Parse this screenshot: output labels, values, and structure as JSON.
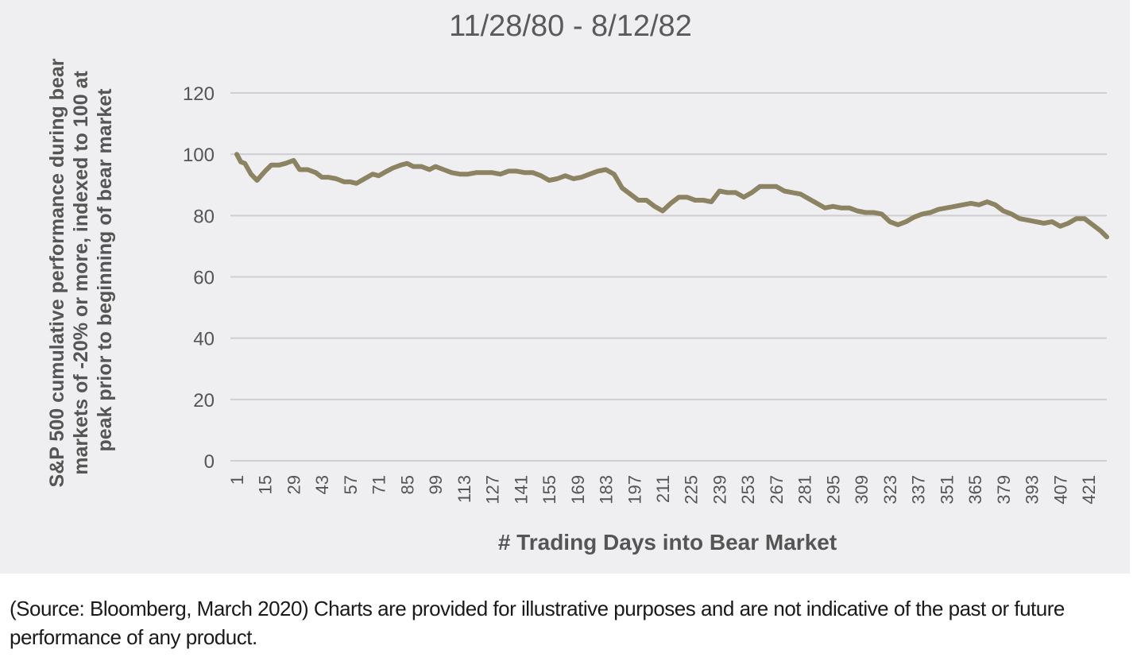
{
  "chart_data": {
    "type": "line",
    "title": "11/28/80 - 8/12/82",
    "ylabel_lines": [
      "S&P 500 cumulative performance during bear",
      "markets of -20% or more, indexed to 100 at",
      "peak prior to beginning of bear market"
    ],
    "xlabel": "# Trading Days into Bear Market",
    "ylim": [
      0,
      120
    ],
    "yticks": [
      0,
      20,
      40,
      60,
      80,
      100,
      120
    ],
    "xlim": [
      1,
      430
    ],
    "xticks": [
      1,
      15,
      29,
      43,
      57,
      71,
      85,
      99,
      113,
      127,
      141,
      155,
      169,
      183,
      197,
      211,
      225,
      239,
      253,
      267,
      281,
      295,
      309,
      323,
      337,
      351,
      365,
      379,
      393,
      407,
      421
    ],
    "grid": true,
    "series": [
      {
        "color": "#8c8363",
        "x": [
          1,
          3,
          5,
          8,
          11,
          15,
          18,
          22,
          25,
          29,
          32,
          36,
          40,
          43,
          46,
          50,
          54,
          57,
          60,
          64,
          68,
          71,
          75,
          78,
          82,
          85,
          88,
          92,
          96,
          99,
          103,
          107,
          111,
          115,
          119,
          123,
          127,
          131,
          135,
          139,
          143,
          147,
          151,
          155,
          159,
          163,
          167,
          171,
          175,
          179,
          183,
          187,
          191,
          195,
          199,
          203,
          207,
          211,
          215,
          219,
          223,
          227,
          231,
          235,
          239,
          243,
          247,
          251,
          255,
          259,
          263,
          267,
          271,
          275,
          279,
          283,
          287,
          291,
          295,
          299,
          303,
          307,
          311,
          315,
          319,
          323,
          327,
          331,
          335,
          339,
          343,
          347,
          351,
          355,
          359,
          363,
          367,
          371,
          375,
          379,
          383,
          387,
          391,
          395,
          399,
          403,
          407,
          411,
          415,
          419,
          423,
          427,
          430
        ],
        "values": [
          100,
          97.5,
          97,
          93.5,
          91.5,
          94.5,
          96.5,
          96.5,
          97,
          98,
          95,
          95,
          94,
          92.5,
          92.5,
          92,
          91,
          91,
          90.5,
          92,
          93.5,
          93,
          94.5,
          95.5,
          96.5,
          97,
          96,
          96,
          95,
          96,
          95,
          94,
          93.5,
          93.5,
          94,
          94,
          94,
          93.5,
          94.5,
          94.5,
          94,
          94,
          93,
          91.5,
          92,
          93,
          92,
          92.5,
          93.5,
          94.5,
          95,
          93.5,
          89,
          87,
          85,
          85,
          83,
          81.5,
          84,
          86,
          86,
          85,
          85,
          84.5,
          88,
          87.5,
          87.5,
          86,
          87.5,
          89.5,
          89.5,
          89.5,
          88,
          87.5,
          87,
          85.5,
          84,
          82.5,
          83,
          82.5,
          82.5,
          81.5,
          81,
          81,
          80.5,
          78,
          77,
          78,
          79.5,
          80.5,
          81,
          82,
          82.5,
          83,
          83.5,
          84,
          83.5,
          84.5,
          83.5,
          81.5,
          80.5,
          79,
          78.5,
          78,
          77.5,
          78,
          76.5,
          77.5,
          79,
          79,
          77,
          75,
          73
        ]
      }
    ]
  },
  "caption": "(Source: Bloomberg, March 2020) Charts are provided for illustrative purposes and are not indicative of the past or future performance of any product."
}
